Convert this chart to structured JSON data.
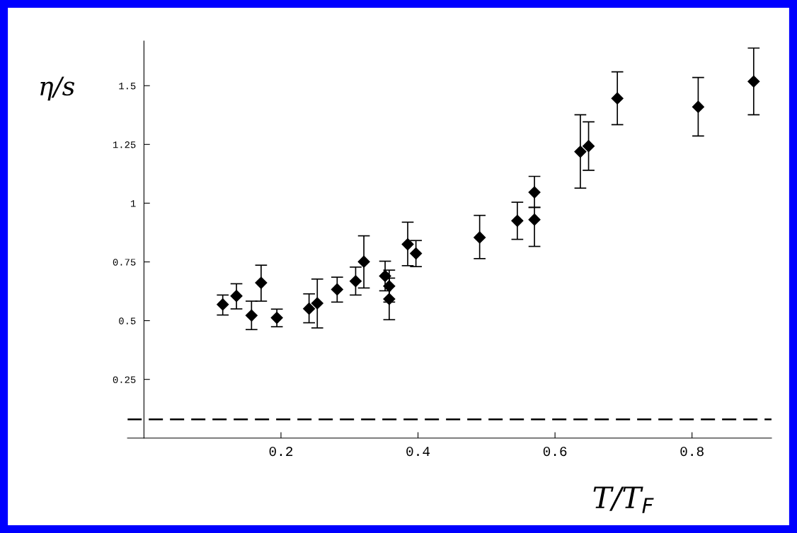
{
  "chart_data": {
    "type": "scatter",
    "xlabel": "T/T$_{F}$",
    "ylabel": "η/s",
    "marker": "diamond",
    "grid": false,
    "x": [
      0.115,
      0.135,
      0.157,
      0.171,
      0.194,
      0.241,
      0.253,
      0.282,
      0.309,
      0.321,
      0.352,
      0.358,
      0.358,
      0.385,
      0.397,
      0.49,
      0.545,
      0.57,
      0.57,
      0.637,
      0.649,
      0.691,
      0.809,
      0.89
    ],
    "values": [
      0.569,
      0.605,
      0.522,
      0.661,
      0.512,
      0.551,
      0.574,
      0.633,
      0.668,
      0.751,
      0.69,
      0.647,
      0.592,
      0.825,
      0.786,
      0.854,
      0.925,
      1.046,
      0.93,
      1.219,
      1.243,
      1.446,
      1.41,
      1.518
    ],
    "errors": [
      [
        0.524,
        0.609
      ],
      [
        0.55,
        0.657
      ],
      [
        0.462,
        0.583
      ],
      [
        0.583,
        0.736
      ],
      [
        0.474,
        0.549
      ],
      [
        0.491,
        0.614
      ],
      [
        0.469,
        0.677
      ],
      [
        0.579,
        0.685
      ],
      [
        0.609,
        0.728
      ],
      [
        0.639,
        0.861
      ],
      [
        0.627,
        0.753
      ],
      [
        0.579,
        0.715
      ],
      [
        0.504,
        0.681
      ],
      [
        0.734,
        0.919
      ],
      [
        0.73,
        0.841
      ],
      [
        0.764,
        0.948
      ],
      [
        0.846,
        1.004
      ],
      [
        0.982,
        1.114
      ],
      [
        0.816,
        0.982
      ],
      [
        1.064,
        1.376
      ],
      [
        1.14,
        1.346
      ],
      [
        1.334,
        1.559
      ],
      [
        1.286,
        1.535
      ],
      [
        1.376,
        1.66
      ]
    ],
    "color": "#000000",
    "xlim": [
      -0.024,
      0.916
    ],
    "ylim": [
      0,
      1.69
    ],
    "xticks": [
      0.2,
      0.4,
      0.6,
      0.8
    ],
    "yticks": [
      0.25,
      0.5,
      0.75,
      1,
      1.25,
      1.5
    ],
    "ref_lines": [
      {
        "axis": "y",
        "value": 0.08,
        "line_style": "dashed",
        "color": "#000000"
      }
    ]
  }
}
